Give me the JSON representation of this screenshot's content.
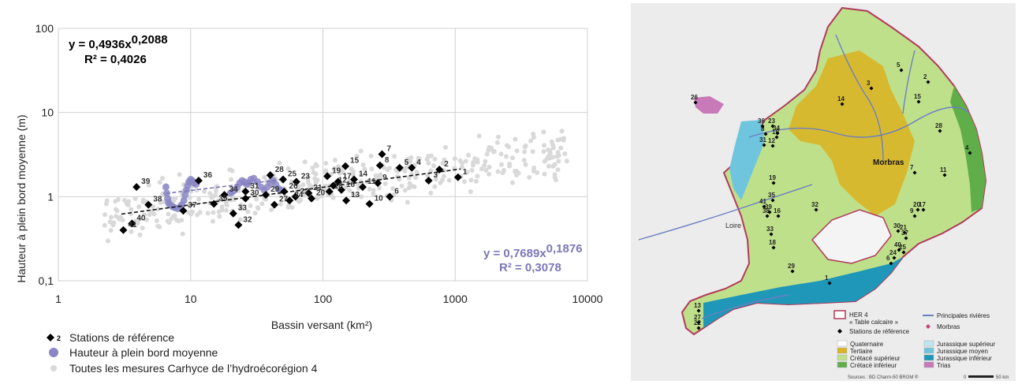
{
  "chart_data": {
    "type": "scatter",
    "xscale": "log",
    "yscale": "log",
    "xlim": [
      1,
      10000
    ],
    "ylim": [
      0.1,
      100
    ],
    "xlabel": "Bassin versant (km²)",
    "ylabel": "Hauteur à plein bord moyenne (m)",
    "x_ticks": [
      "1",
      "10",
      "100",
      "1000",
      "10000"
    ],
    "y_ticks": [
      "0,1",
      "1",
      "10",
      "100"
    ],
    "grid": true,
    "equation_black": {
      "line1": "y = 0,4936x",
      "exp": "0,2088",
      "line2": "R² = 0,4026"
    },
    "equation_blue": {
      "line1": "y = 0,7689x",
      "exp": "0,1876",
      "line2": "R² = 0,3078"
    },
    "colors": {
      "stations": "#000000",
      "mean": "#8b87c6",
      "all": "#d9d9d9",
      "equation_blue": "#7b78b8"
    },
    "series": [
      {
        "name": "Stations de référence",
        "marker": "diamond",
        "legend_number": "2",
        "points": [
          {
            "label": "1",
            "x": 1050,
            "y": 1.7
          },
          {
            "label": "2",
            "x": 760,
            "y": 2.1
          },
          {
            "label": "3",
            "x": 630,
            "y": 1.55
          },
          {
            "label": "4",
            "x": 470,
            "y": 2.2
          },
          {
            "label": "5",
            "x": 380,
            "y": 2.2
          },
          {
            "label": "6",
            "x": 320,
            "y": 1.0
          },
          {
            "label": "7",
            "x": 280,
            "y": 3.2
          },
          {
            "label": "8",
            "x": 270,
            "y": 2.35
          },
          {
            "label": "9",
            "x": 260,
            "y": 1.45
          },
          {
            "label": "10",
            "x": 225,
            "y": 0.82
          },
          {
            "label": "11",
            "x": 200,
            "y": 1.3
          },
          {
            "label": "12",
            "x": 120,
            "y": 1.35
          },
          {
            "label": "13",
            "x": 150,
            "y": 0.9
          },
          {
            "label": "14",
            "x": 172,
            "y": 1.6
          },
          {
            "label": "15",
            "x": 148,
            "y": 2.3
          },
          {
            "label": "16",
            "x": 138,
            "y": 1.2
          },
          {
            "label": "17",
            "x": 130,
            "y": 1.5
          },
          {
            "label": "18",
            "x": 112,
            "y": 1.15
          },
          {
            "label": "19",
            "x": 108,
            "y": 1.75
          },
          {
            "label": "20",
            "x": 82,
            "y": 0.95
          },
          {
            "label": "21",
            "x": 78,
            "y": 1.1
          },
          {
            "label": "22",
            "x": 62,
            "y": 1.0
          },
          {
            "label": "23",
            "x": 63,
            "y": 1.5
          },
          {
            "label": "24",
            "x": 56,
            "y": 0.9
          },
          {
            "label": "25",
            "x": 50,
            "y": 1.6
          },
          {
            "label": "26",
            "x": 51,
            "y": 1.15
          },
          {
            "label": "27",
            "x": 43,
            "y": 0.8
          },
          {
            "label": "28",
            "x": 40,
            "y": 1.8
          },
          {
            "label": "29",
            "x": 37,
            "y": 1.05
          },
          {
            "label": "30",
            "x": 26,
            "y": 0.95
          },
          {
            "label": "31",
            "x": 26,
            "y": 1.15
          },
          {
            "label": "32",
            "x": 23,
            "y": 0.46
          },
          {
            "label": "33",
            "x": 21,
            "y": 0.63
          },
          {
            "label": "34",
            "x": 18,
            "y": 1.05
          },
          {
            "label": "35",
            "x": 15,
            "y": 0.82
          },
          {
            "label": "36",
            "x": 11.5,
            "y": 1.55
          },
          {
            "label": "37",
            "x": 8.8,
            "y": 0.68
          },
          {
            "label": "38",
            "x": 4.8,
            "y": 0.8
          },
          {
            "label": "39",
            "x": 3.9,
            "y": 1.3
          },
          {
            "label": "40",
            "x": 3.6,
            "y": 0.48
          },
          {
            "label": "41",
            "x": 3.1,
            "y": 0.4
          }
        ]
      },
      {
        "name": "Hauteur à plein bord moyenne",
        "marker": "circle",
        "points": [
          {
            "x": 6.5,
            "y": 1.3
          },
          {
            "x": 6.6,
            "y": 1.1
          },
          {
            "x": 6.7,
            "y": 0.95
          },
          {
            "x": 6.8,
            "y": 0.85
          },
          {
            "x": 7.0,
            "y": 0.8
          },
          {
            "x": 7.3,
            "y": 0.76
          },
          {
            "x": 7.6,
            "y": 0.74
          },
          {
            "x": 8.0,
            "y": 0.72
          },
          {
            "x": 8.3,
            "y": 0.75
          },
          {
            "x": 8.6,
            "y": 0.8
          },
          {
            "x": 8.9,
            "y": 0.9
          },
          {
            "x": 9.1,
            "y": 1.05
          },
          {
            "x": 9.3,
            "y": 1.2
          },
          {
            "x": 9.5,
            "y": 1.35
          },
          {
            "x": 9.7,
            "y": 1.5
          },
          {
            "x": 10.0,
            "y": 1.6
          },
          {
            "x": 10.3,
            "y": 1.55
          },
          {
            "x": 10.6,
            "y": 1.45
          },
          {
            "x": 11.0,
            "y": 1.4
          },
          {
            "x": 20,
            "y": 1.1
          },
          {
            "x": 20.8,
            "y": 1.15
          },
          {
            "x": 21.5,
            "y": 1.2
          },
          {
            "x": 22.5,
            "y": 1.3
          },
          {
            "x": 23.5,
            "y": 1.45
          },
          {
            "x": 24.5,
            "y": 1.55
          },
          {
            "x": 25.5,
            "y": 1.5
          },
          {
            "x": 26.5,
            "y": 1.4
          },
          {
            "x": 27.5,
            "y": 1.45
          },
          {
            "x": 28.5,
            "y": 1.6
          },
          {
            "x": 30,
            "y": 1.65
          },
          {
            "x": 32,
            "y": 1.5
          },
          {
            "x": 34,
            "y": 1.3
          },
          {
            "x": 36,
            "y": 1.2
          },
          {
            "x": 38,
            "y": 1.3
          },
          {
            "x": 40,
            "y": 1.45
          },
          {
            "x": 42,
            "y": 1.55
          },
          {
            "x": 44,
            "y": 1.4
          },
          {
            "x": 46,
            "y": 1.25
          },
          {
            "x": 48,
            "y": 1.2
          }
        ]
      },
      {
        "name": "Toutes les mesures Carhyce de l’hydroécorégion 4",
        "marker": "circle"
      }
    ],
    "trendlines": [
      {
        "series": "Stations de référence",
        "a": 0.4936,
        "b": 0.2088,
        "x_range": [
          3,
          1100
        ]
      },
      {
        "series": "Hauteur à plein bord moyenne",
        "a": 0.7689,
        "b": 0.1876,
        "x_range": [
          6.5,
          50
        ]
      }
    ]
  },
  "map": {
    "region_label": "Morbras",
    "river_label": "Loire",
    "station_labels": [
      "1",
      "2",
      "3",
      "4",
      "5",
      "6",
      "7",
      "8",
      "9",
      "10",
      "11",
      "12",
      "13",
      "14",
      "15",
      "16",
      "17",
      "18",
      "19",
      "20",
      "21",
      "22",
      "23",
      "24",
      "25",
      "26",
      "27",
      "28",
      "29",
      "30",
      "31",
      "32",
      "33",
      "34",
      "35",
      "36",
      "37",
      "38",
      "39",
      "40",
      "41"
    ],
    "legend": {
      "her_title": "HER 4",
      "her_sub": "« Table calcaire »",
      "stations": "Stations de référence",
      "rivers": "Principales rivières",
      "morbras": "Morbras",
      "geology": [
        {
          "label": "Quaternaire",
          "color": "#ffffff"
        },
        {
          "label": "Tertiaire",
          "color": "#d9b526"
        },
        {
          "label": "Crétacé supérieur",
          "color": "#bfe08a"
        },
        {
          "label": "Crétacé inférieur",
          "color": "#5fae4a"
        },
        {
          "label": "Jurassique supérieur",
          "color": "#bfe6ee"
        },
        {
          "label": "Jurassique moyen",
          "color": "#6fc5de"
        },
        {
          "label": "Jurassique inférieur",
          "color": "#1f97b8"
        },
        {
          "label": "Trias",
          "color": "#c879b7"
        }
      ],
      "sources": "Sources : BD Charm-50 BRGM ®",
      "scale_start": "0",
      "scale_end": "50 km"
    }
  }
}
